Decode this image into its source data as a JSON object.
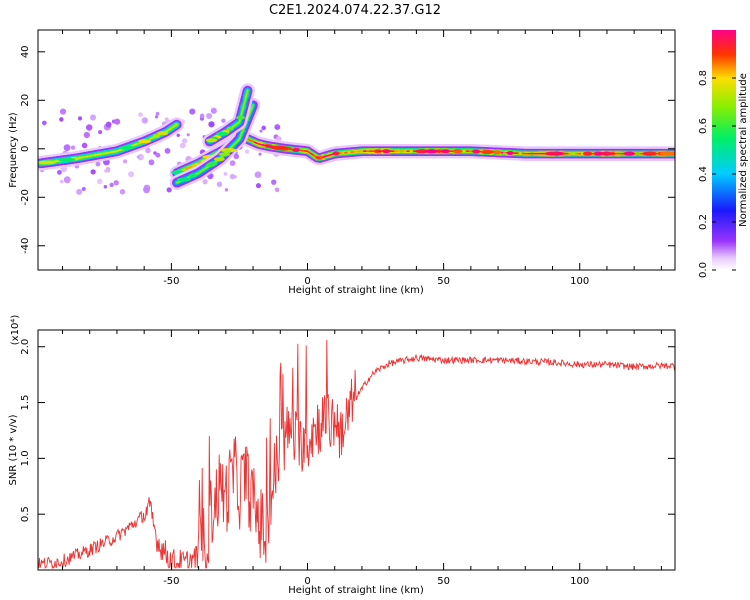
{
  "title": "C2E1.2024.074.22.37.G12",
  "chart_data": [
    {
      "type": "heatmap",
      "xlabel": "Height of straight line (km)",
      "ylabel": "Frequency (Hz)",
      "xlim": [
        -99,
        135
      ],
      "ylim": [
        -50,
        49
      ],
      "xticks": [
        -50,
        0,
        50,
        100
      ],
      "yticks": [
        -40,
        -20,
        0,
        20,
        40
      ],
      "colorbar": {
        "label": "Normalized spectral amplitude",
        "range": [
          0,
          1
        ],
        "ticks": [
          0.0,
          0.2,
          0.4,
          0.6,
          0.8
        ]
      },
      "ridges": [
        {
          "x": [
            -98,
            -85,
            -70,
            -60,
            -52,
            -48
          ],
          "y": [
            -6,
            -4,
            -1,
            3,
            7,
            10
          ],
          "amp": 0.45
        },
        {
          "x": [
            -48,
            -40,
            -30,
            -24,
            -18,
            -14,
            -8,
            0,
            4,
            10,
            20,
            40,
            60,
            80,
            100,
            120,
            135
          ],
          "y": [
            -10,
            -6,
            0,
            5,
            2,
            1,
            0,
            -1,
            -4,
            -2,
            -1,
            -1,
            -1,
            -2,
            -2,
            -2,
            -2
          ],
          "amp": 0.6
        },
        {
          "x": [
            -48,
            -40,
            -32,
            -25,
            -20
          ],
          "y": [
            -14,
            -10,
            -4,
            4,
            18
          ],
          "amp": 0.25
        },
        {
          "x": [
            -36,
            -30,
            -25,
            -22
          ],
          "y": [
            3,
            7,
            11,
            24
          ],
          "amp": 0.3
        }
      ]
    },
    {
      "type": "line",
      "xlabel": "Height of straight line (km)",
      "ylabel": "SNR (10 * v/v)",
      "yscale_label": "(x10⁴)",
      "xlim": [
        -99,
        135
      ],
      "ylim": [
        0,
        2.15
      ],
      "xticks": [
        -50,
        0,
        50,
        100
      ],
      "yticks": [
        0.5,
        1.0,
        1.5,
        2.0
      ],
      "series": [
        {
          "color": "#ee3333",
          "x": [
            -99,
            -90,
            -80,
            -70,
            -62,
            -58,
            -55,
            -50,
            -45,
            -40,
            -37,
            -35,
            -32,
            -30,
            -27,
            -25,
            -23,
            -20,
            -17,
            -15,
            -13,
            -11,
            -9,
            -7,
            -5,
            -3,
            -1,
            0,
            2,
            4,
            6,
            8,
            10,
            12,
            14,
            16,
            18,
            20,
            22,
            25,
            30,
            40,
            50,
            60,
            70,
            80,
            90,
            95,
            100,
            110,
            120,
            130,
            135
          ],
          "y": [
            0.05,
            0.08,
            0.18,
            0.3,
            0.45,
            0.55,
            0.25,
            0.08,
            0.06,
            0.12,
            0.3,
            0.55,
            0.75,
            0.65,
            0.9,
            0.7,
            0.85,
            0.6,
            0.4,
            0.3,
            0.7,
            1.0,
            1.1,
            1.25,
            1.2,
            1.1,
            1.2,
            1.15,
            1.25,
            1.3,
            1.35,
            1.3,
            1.35,
            1.25,
            1.3,
            1.45,
            1.55,
            1.62,
            1.7,
            1.78,
            1.85,
            1.9,
            1.88,
            1.88,
            1.88,
            1.87,
            1.86,
            1.85,
            1.84,
            1.84,
            1.82,
            1.83,
            1.83
          ]
        }
      ]
    }
  ]
}
